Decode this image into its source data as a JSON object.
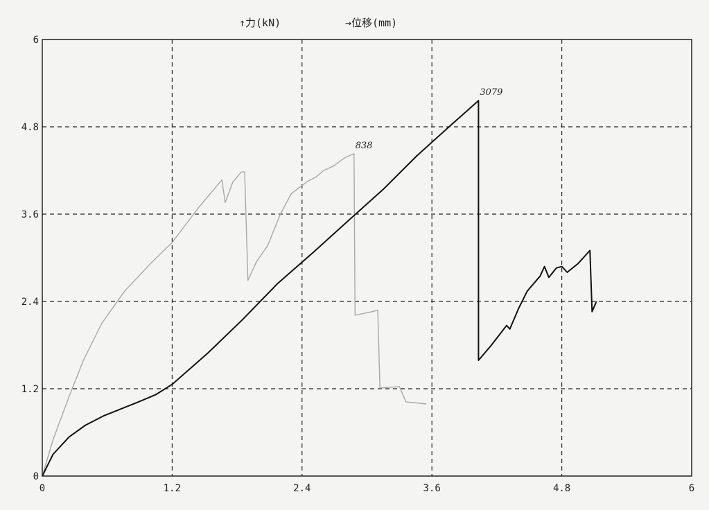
{
  "chart_data": {
    "type": "line",
    "title": "",
    "ylabel": "↑力(kN)",
    "xlabel": "→位移(mm)",
    "xlim": [
      0,
      6
    ],
    "ylim": [
      0,
      6
    ],
    "xticks": [
      "0",
      "1.2",
      "2.4",
      "3.6",
      "4.8",
      "6"
    ],
    "yticks": [
      "0",
      "1.2",
      "2.4",
      "3.6",
      "4.8",
      "6"
    ],
    "grid": true,
    "series": [
      {
        "color": "#a8a8a8",
        "annotation": "838",
        "annotation_at": [
          2.88,
          4.43
        ],
        "points": [
          [
            0,
            0
          ],
          [
            0.1,
            0.5
          ],
          [
            0.25,
            1.1
          ],
          [
            0.38,
            1.59
          ],
          [
            0.55,
            2.1
          ],
          [
            0.76,
            2.54
          ],
          [
            1.0,
            2.92
          ],
          [
            1.2,
            3.21
          ],
          [
            1.45,
            3.7
          ],
          [
            1.66,
            4.07
          ],
          [
            1.69,
            3.76
          ],
          [
            1.76,
            4.04
          ],
          [
            1.84,
            4.18
          ],
          [
            1.87,
            4.18
          ],
          [
            1.9,
            2.69
          ],
          [
            1.98,
            2.95
          ],
          [
            2.08,
            3.16
          ],
          [
            2.2,
            3.6
          ],
          [
            2.3,
            3.88
          ],
          [
            2.45,
            4.05
          ],
          [
            2.53,
            4.11
          ],
          [
            2.6,
            4.2
          ],
          [
            2.69,
            4.26
          ],
          [
            2.8,
            4.38
          ],
          [
            2.88,
            4.43
          ],
          [
            2.89,
            2.21
          ],
          [
            3.05,
            2.26
          ],
          [
            3.1,
            2.28
          ],
          [
            3.12,
            1.21
          ],
          [
            3.3,
            1.23
          ],
          [
            3.36,
            1.02
          ],
          [
            3.55,
            0.99
          ]
        ]
      },
      {
        "color": "#111111",
        "annotation": "3079",
        "annotation_at": [
          4.03,
          5.16
        ],
        "points": [
          [
            0,
            0
          ],
          [
            0.1,
            0.3
          ],
          [
            0.25,
            0.54
          ],
          [
            0.4,
            0.7
          ],
          [
            0.57,
            0.83
          ],
          [
            0.89,
            1.02
          ],
          [
            1.05,
            1.12
          ],
          [
            1.2,
            1.26
          ],
          [
            1.53,
            1.69
          ],
          [
            1.85,
            2.15
          ],
          [
            2.17,
            2.64
          ],
          [
            2.5,
            3.07
          ],
          [
            2.82,
            3.5
          ],
          [
            3.15,
            3.94
          ],
          [
            3.46,
            4.4
          ],
          [
            3.75,
            4.79
          ],
          [
            4.03,
            5.16
          ],
          [
            4.03,
            1.59
          ],
          [
            4.15,
            1.8
          ],
          [
            4.29,
            2.07
          ],
          [
            4.32,
            2.02
          ],
          [
            4.4,
            2.3
          ],
          [
            4.48,
            2.54
          ],
          [
            4.6,
            2.75
          ],
          [
            4.64,
            2.88
          ],
          [
            4.68,
            2.73
          ],
          [
            4.75,
            2.86
          ],
          [
            4.8,
            2.88
          ],
          [
            4.85,
            2.8
          ],
          [
            4.95,
            2.92
          ],
          [
            5.06,
            3.1
          ],
          [
            5.08,
            2.26
          ],
          [
            5.12,
            2.4
          ]
        ]
      }
    ]
  }
}
